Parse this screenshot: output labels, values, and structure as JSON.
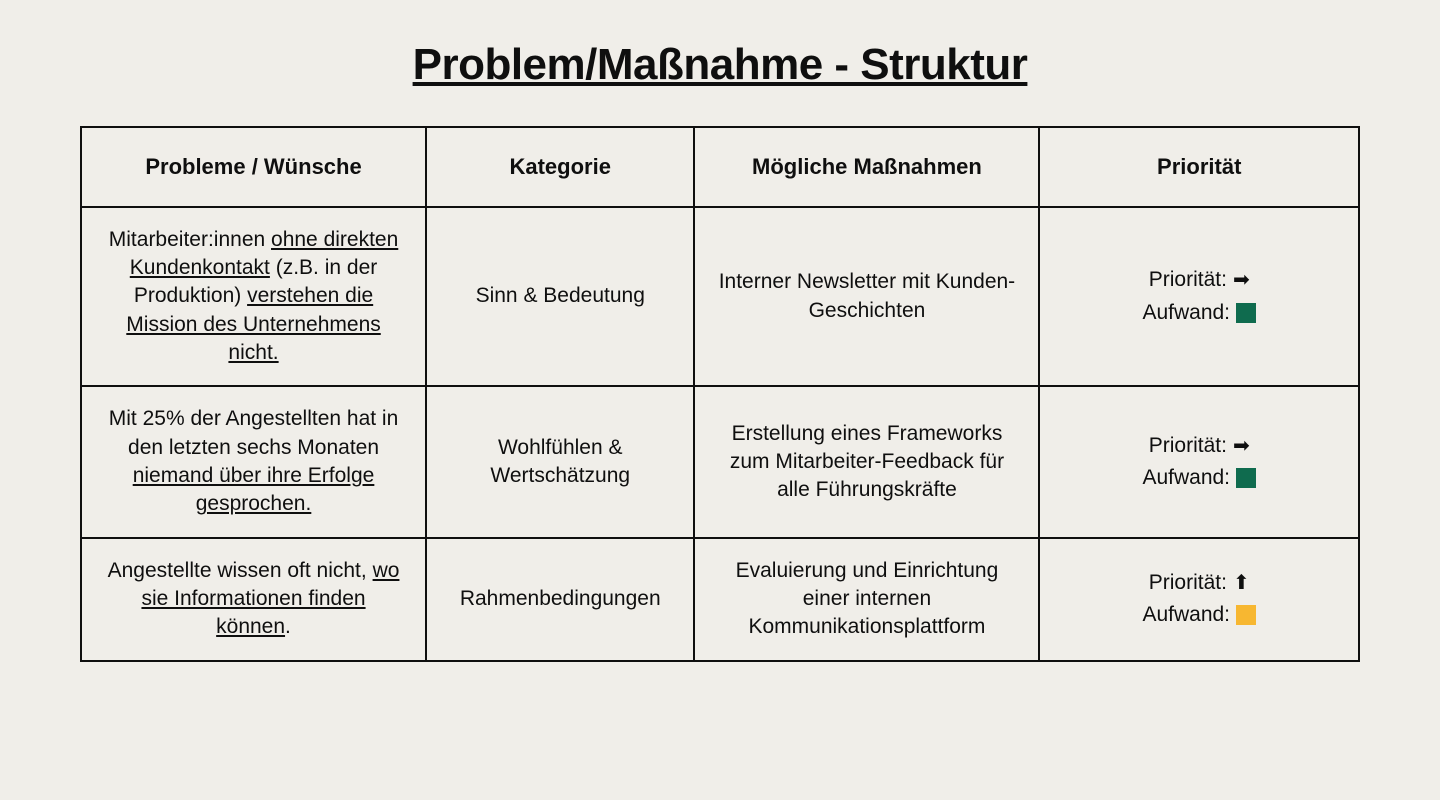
{
  "title": "Problem/Maßnahme - Struktur",
  "columns": [
    "Probleme / Wünsche",
    "Kategorie",
    "Mögliche Maßnahmen",
    "Priorität"
  ],
  "labels": {
    "priority": "Priorität:",
    "effort": "Aufwand:"
  },
  "colors": {
    "background": "#f0eee9",
    "text": "#0f0f0f",
    "border": "#0f0f0f",
    "effort_green": "#0f6b4e",
    "effort_yellow": "#f7b731"
  },
  "arrows": {
    "right": "➡",
    "up": "⬆"
  },
  "rows": [
    {
      "problem_segments": [
        {
          "t": "Mitarbeiter:innen ",
          "u": false
        },
        {
          "t": "ohne direkten Kundenkontakt",
          "u": true
        },
        {
          "t": " (z.B. in der Produktion) ",
          "u": false
        },
        {
          "t": "verstehen die Mission des Unternehmens nicht.",
          "u": true
        }
      ],
      "category": "Sinn & Bedeutung",
      "action": "Interner Newsletter mit Kunden-Geschichten",
      "priority_arrow": "right",
      "effort_color": "effort_green"
    },
    {
      "problem_segments": [
        {
          "t": "Mit 25% der Angestellten hat in den letzten sechs Monaten ",
          "u": false
        },
        {
          "t": "niemand über ihre Erfolge gesprochen.",
          "u": true
        }
      ],
      "category": "Wohlfühlen & Wertschätzung",
      "action": "Erstellung eines Frameworks zum Mitarbeiter-Feedback für alle Führungskräfte",
      "priority_arrow": "right",
      "effort_color": "effort_green"
    },
    {
      "problem_segments": [
        {
          "t": "Angestellte wissen oft nicht, ",
          "u": false
        },
        {
          "t": "wo sie Informationen finden können",
          "u": true
        },
        {
          "t": ".",
          "u": false
        }
      ],
      "category": "Rahmenbedingungen",
      "action": "Evaluierung und Einrichtung einer internen Kommunikationsplattform",
      "priority_arrow": "up",
      "effort_color": "effort_yellow"
    }
  ]
}
